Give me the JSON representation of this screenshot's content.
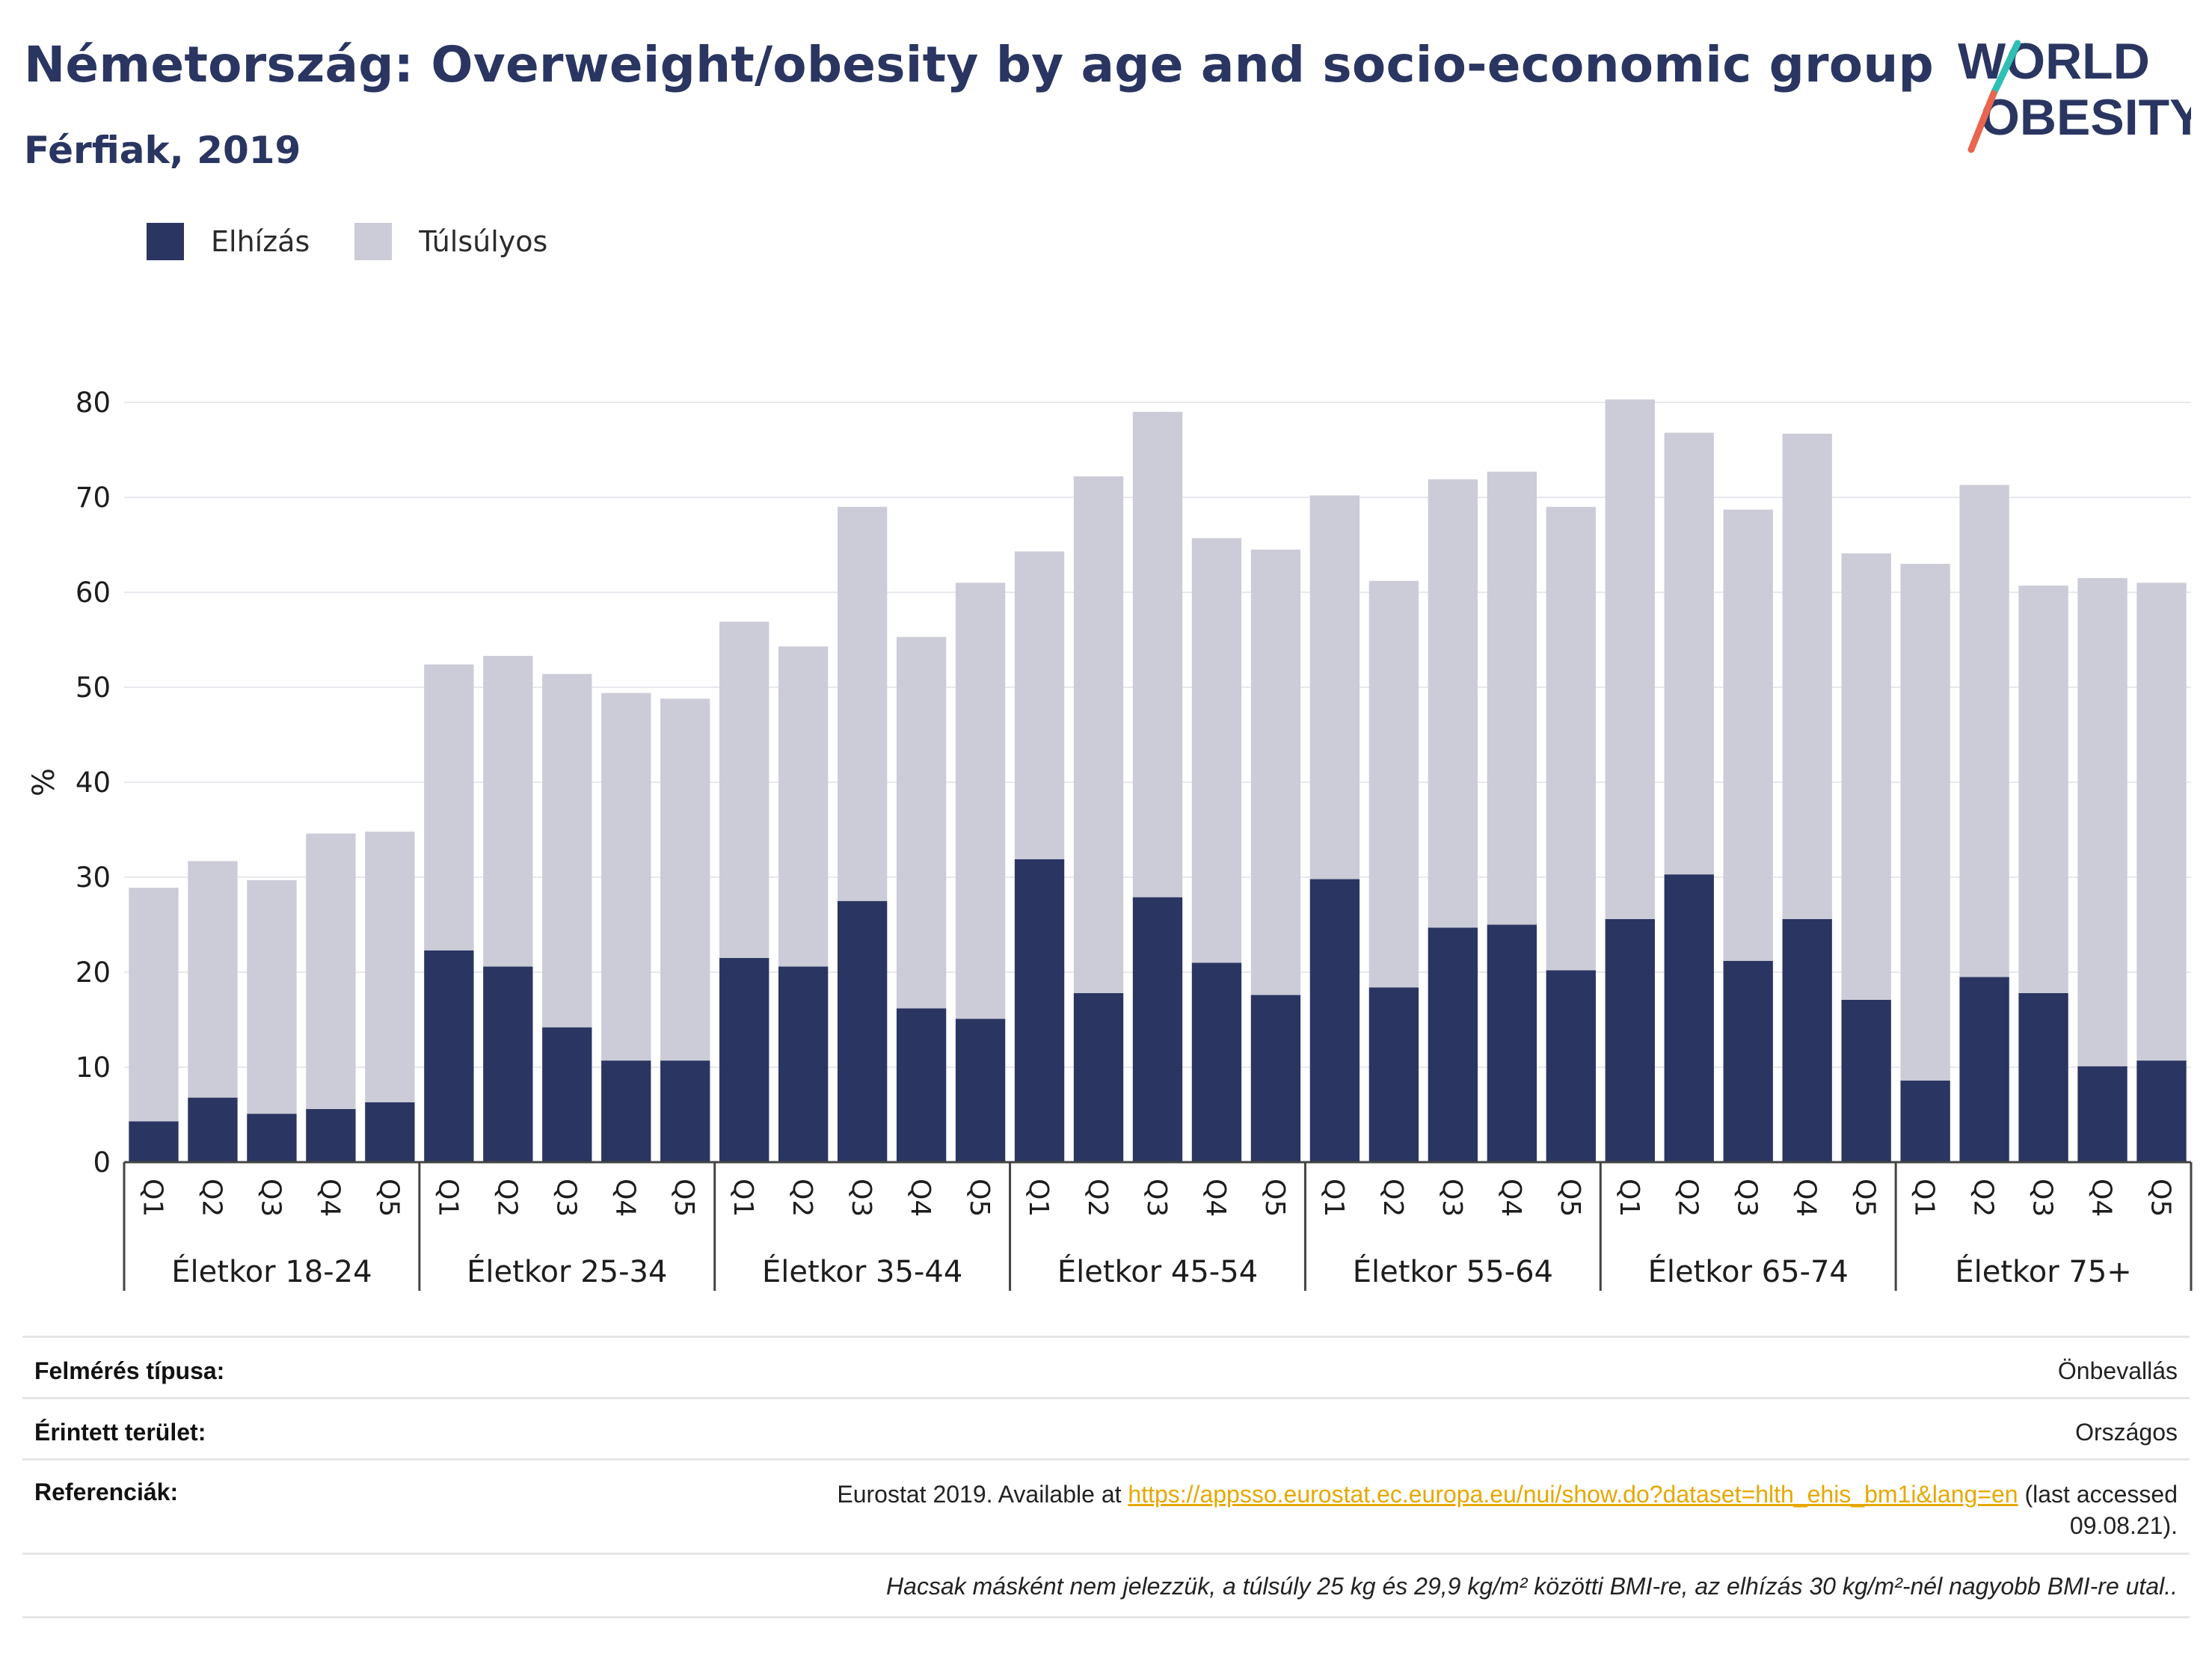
{
  "header": {
    "title": "Németország: Overweight/obesity by age and socio-economic group",
    "subtitle": "Férfiak, 2019"
  },
  "logo": {
    "line1": "WORLD",
    "line2": "OBESITY"
  },
  "colors": {
    "obesity": "#2a3561",
    "overweight": "#cbccd7",
    "title": "#2a3561",
    "link": "#e6a800"
  },
  "chart_data": {
    "type": "bar",
    "stacked": true,
    "ylabel": "%",
    "ylim": [
      0,
      80
    ],
    "yticks": [
      0,
      10,
      20,
      30,
      40,
      50,
      60,
      70,
      80
    ],
    "grid": true,
    "legend_position": "top-left",
    "groups": [
      "Életkor 18-24",
      "Életkor 25-34",
      "Életkor 35-44",
      "Életkor 45-54",
      "Életkor 55-64",
      "Életkor 65-74",
      "Életkor 75+"
    ],
    "subcategories": [
      "Q1",
      "Q2",
      "Q3",
      "Q4",
      "Q5"
    ],
    "series": [
      {
        "name": "Elhízás",
        "values": [
          4.3,
          6.8,
          5.1,
          5.6,
          6.3,
          22.3,
          20.6,
          14.2,
          10.7,
          10.7,
          21.5,
          20.6,
          27.5,
          16.2,
          15.1,
          31.9,
          17.8,
          27.9,
          21.0,
          17.6,
          29.8,
          18.4,
          24.7,
          25.0,
          20.2,
          25.6,
          30.3,
          21.2,
          25.6,
          17.1,
          8.6,
          19.5,
          17.8,
          10.1,
          10.7
        ]
      },
      {
        "name": "Túlsúlyos",
        "values": [
          24.6,
          24.9,
          24.6,
          29.0,
          28.5,
          30.1,
          32.7,
          37.2,
          38.7,
          38.1,
          35.4,
          33.7,
          41.5,
          39.1,
          45.9,
          32.4,
          54.4,
          51.1,
          44.7,
          46.9,
          40.4,
          42.8,
          47.2,
          47.7,
          48.8,
          54.7,
          46.5,
          47.5,
          51.1,
          47.0,
          54.4,
          51.8,
          42.9,
          51.4,
          50.3
        ]
      }
    ]
  },
  "meta": {
    "survey_label": "Felmérés típusa:",
    "survey_value": "Önbevallás",
    "area_label": "Érintett terület:",
    "area_value": "Országos",
    "refs_label": "Referenciák:",
    "refs_text_pre": "Eurostat 2019. Available at ",
    "refs_link": "https://appsso.eurostat.ec.europa.eu/nui/show.do?dataset=hlth_ehis_bm1i&lang=en",
    "refs_text_post": " (last accessed",
    "refs_text_date": "09.08.21).",
    "footnote": "Hacsak másként nem jelezzük, a túlsúly 25 kg és 29,9 kg/m² közötti BMI-re, az elhízás 30 kg/m²-nél nagyobb BMI-re utal.."
  }
}
